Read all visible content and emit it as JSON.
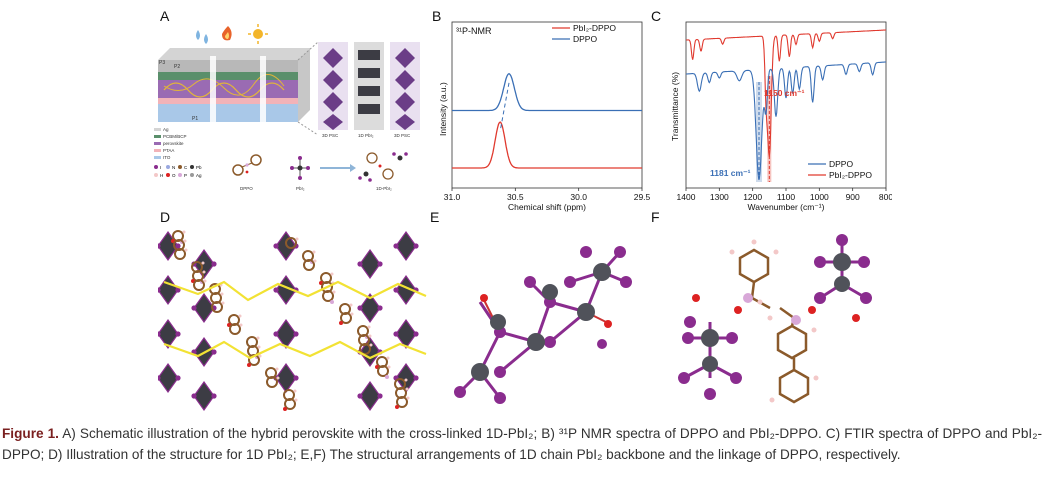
{
  "panels": {
    "A": "A",
    "B": "B",
    "C": "C",
    "D": "D",
    "E": "E",
    "F": "F"
  },
  "panelA": {
    "layer_labels": [
      "P3",
      "P2",
      "P1"
    ],
    "legend": [
      "Ag",
      "PCBM/BCP",
      "perovskite",
      "PTAA",
      "ITO"
    ],
    "atom_legend_row1": [
      "I",
      "N",
      "C",
      "Pb"
    ],
    "atom_legend_row2": [
      "H",
      "O",
      "P",
      "Ag"
    ],
    "structure_labels": [
      "3D PSC",
      "1D PbI₂",
      "3D PSC"
    ],
    "molecule_labels": [
      "DPPO",
      "PbI₂",
      "1D-PbI₂"
    ]
  },
  "chart_data": [
    {
      "type": "line",
      "panel": "B",
      "title": "³¹P-NMR",
      "xlabel": "Chemical shift (ppm)",
      "ylabel": "Intensity (a.u.)",
      "xlim": [
        31.0,
        29.5
      ],
      "x_ticks": [
        "31.0",
        "30.5",
        "30.0",
        "29.5"
      ],
      "series": [
        {
          "name": "PbI₂-DPPO",
          "color": "#e03a2f",
          "peak_x": 30.62,
          "baseline": 0,
          "height": 1.0
        },
        {
          "name": "DPPO",
          "color": "#3a6fb5",
          "peak_x": 30.55,
          "baseline": 1.25,
          "height": 0.8
        }
      ],
      "dashed_link": true
    },
    {
      "type": "line",
      "panel": "C",
      "xlabel": "Wavenumber (cm⁻¹)",
      "ylabel": "Transmittance (%)",
      "xlim": [
        1400,
        800
      ],
      "x_ticks": [
        "1400",
        "1300",
        "1200",
        "1100",
        "1000",
        "900",
        "800"
      ],
      "series": [
        {
          "name": "DPPO",
          "color": "#3a6fb5"
        },
        {
          "name": "PbI₂-DPPO",
          "color": "#e03a2f"
        }
      ],
      "annotations": [
        {
          "text": "1150 cm⁻¹",
          "x": 1150,
          "color": "#e03a2f"
        },
        {
          "text": "1181 cm⁻¹",
          "x": 1181,
          "color": "#3a6fb5"
        }
      ]
    }
  ],
  "caption": {
    "label": "Figure 1.",
    "text": " A) Schematic illustration of the hybrid perovskite with the cross-linked 1D-PbI₂; B) ³¹P NMR spectra of DPPO and PbI₂-DPPO. C) FTIR spectra of DPPO and PbI₂-DPPO; D) Illustration of the structure for 1D PbI₂; E,F) The structural arrangements of 1D chain PbI₂ backbone and the linkage of DPPO, respectively."
  },
  "colors": {
    "pbi2_dppo": "#e03a2f",
    "dppo": "#3a6fb5",
    "caption_label": "#7a1f1f",
    "iodine": "#8a2c8e",
    "lead": "#50525a"
  }
}
